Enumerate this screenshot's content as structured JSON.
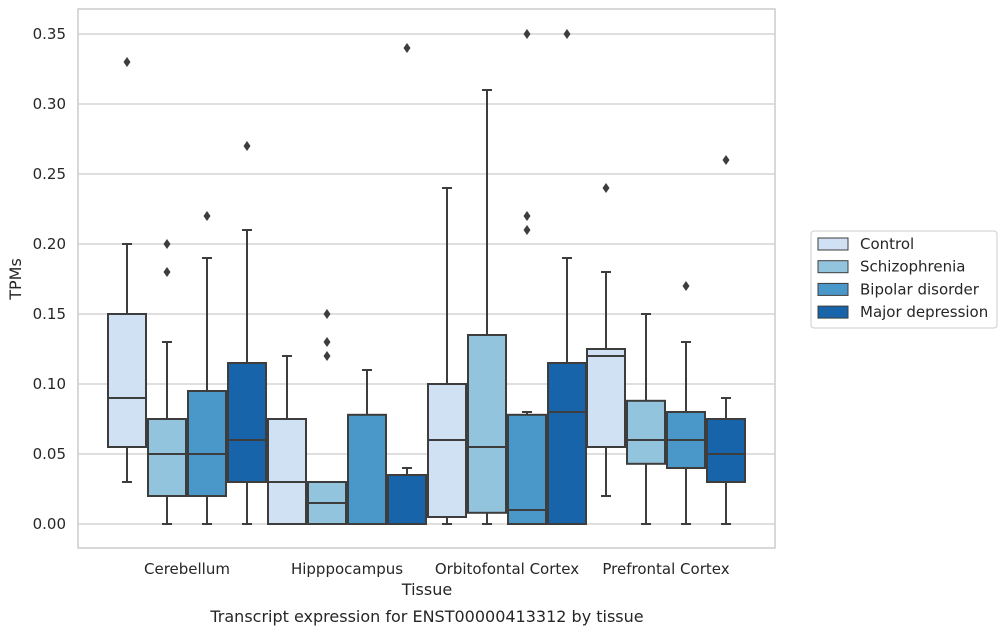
{
  "chart_data": {
    "type": "box",
    "caption": "Transcript expression for ENST00000413312 by tissue",
    "xlabel": "Tissue",
    "ylabel": "TPMs",
    "ylim": [
      -0.017,
      0.368
    ],
    "yticks": [
      "0.00",
      "0.05",
      "0.10",
      "0.15",
      "0.20",
      "0.25",
      "0.30",
      "0.35"
    ],
    "grid": "horizontal",
    "legend_position": "right",
    "categories": [
      "Cerebellum",
      "Hipppocampus",
      "Orbitofontal Cortex",
      "Prefrontal Cortex"
    ],
    "series": [
      {
        "name": "Control",
        "color": "#cfe1f2",
        "boxes": [
          {
            "whisker_low": 0.03,
            "q1": 0.055,
            "median": 0.09,
            "q3": 0.15,
            "whisker_high": 0.2,
            "outliers": [
              0.33
            ]
          },
          {
            "whisker_low": 0.0,
            "q1": 0.0,
            "median": 0.03,
            "q3": 0.075,
            "whisker_high": 0.12,
            "outliers": []
          },
          {
            "whisker_low": 0.0,
            "q1": 0.005,
            "median": 0.06,
            "q3": 0.1,
            "whisker_high": 0.24,
            "outliers": []
          },
          {
            "whisker_low": 0.02,
            "q1": 0.055,
            "median": 0.12,
            "q3": 0.125,
            "whisker_high": 0.18,
            "outliers": [
              0.24
            ]
          }
        ]
      },
      {
        "name": "Schizophrenia",
        "color": "#93c4de",
        "boxes": [
          {
            "whisker_low": 0.0,
            "q1": 0.02,
            "median": 0.05,
            "q3": 0.075,
            "whisker_high": 0.13,
            "outliers": [
              0.18,
              0.2
            ]
          },
          {
            "whisker_low": 0.0,
            "q1": 0.0,
            "median": 0.015,
            "q3": 0.03,
            "whisker_high": 0.03,
            "outliers": [
              0.12,
              0.13,
              0.15
            ]
          },
          {
            "whisker_low": 0.0,
            "q1": 0.008,
            "median": 0.055,
            "q3": 0.135,
            "whisker_high": 0.31,
            "outliers": []
          },
          {
            "whisker_low": 0.0,
            "q1": 0.043,
            "median": 0.06,
            "q3": 0.088,
            "whisker_high": 0.15,
            "outliers": []
          }
        ]
      },
      {
        "name": "Bipolar disorder",
        "color": "#4a98c9",
        "boxes": [
          {
            "whisker_low": 0.0,
            "q1": 0.02,
            "median": 0.05,
            "q3": 0.095,
            "whisker_high": 0.19,
            "outliers": [
              0.22
            ]
          },
          {
            "whisker_low": 0.0,
            "q1": 0.0,
            "median": 0.0,
            "q3": 0.078,
            "whisker_high": 0.11,
            "outliers": []
          },
          {
            "whisker_low": 0.0,
            "q1": 0.0,
            "median": 0.01,
            "q3": 0.078,
            "whisker_high": 0.08,
            "outliers": [
              0.21,
              0.22,
              0.35
            ]
          },
          {
            "whisker_low": 0.0,
            "q1": 0.04,
            "median": 0.06,
            "q3": 0.08,
            "whisker_high": 0.13,
            "outliers": [
              0.17
            ]
          }
        ]
      },
      {
        "name": "Major depression",
        "color": "#1764ab",
        "boxes": [
          {
            "whisker_low": 0.0,
            "q1": 0.03,
            "median": 0.06,
            "q3": 0.115,
            "whisker_high": 0.21,
            "outliers": [
              0.27
            ]
          },
          {
            "whisker_low": 0.0,
            "q1": 0.0,
            "median": 0.0,
            "q3": 0.035,
            "whisker_high": 0.04,
            "outliers": [
              0.34
            ]
          },
          {
            "whisker_low": 0.0,
            "q1": 0.0,
            "median": 0.08,
            "q3": 0.115,
            "whisker_high": 0.19,
            "outliers": [
              0.35
            ]
          },
          {
            "whisker_low": 0.0,
            "q1": 0.03,
            "median": 0.05,
            "q3": 0.075,
            "whisker_high": 0.09,
            "outliers": [
              0.26
            ]
          }
        ]
      }
    ]
  }
}
